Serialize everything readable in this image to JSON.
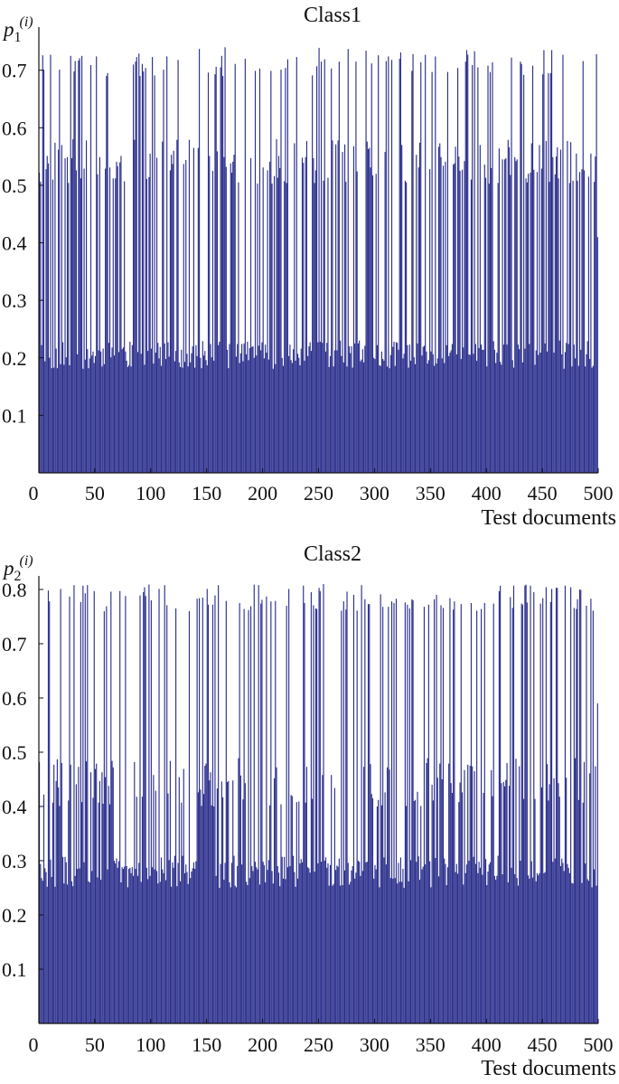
{
  "chart_data": [
    {
      "type": "bar",
      "title": "Class1",
      "ylabel": {
        "base": "p",
        "sub": "1",
        "sup": "(i)"
      },
      "xlabel": "Test documents",
      "xlim": [
        0,
        500
      ],
      "ylim": [
        0,
        0.775
      ],
      "xticks": [
        "0",
        "50",
        "100",
        "150",
        "200",
        "250",
        "300",
        "350",
        "400",
        "450",
        "500"
      ],
      "yticks": [
        "0.1",
        "0.2",
        "0.3",
        "0.4",
        "0.5",
        "0.6",
        "0.7"
      ],
      "color": "#2b2f8c",
      "generator": {
        "seed": 11,
        "n": 500,
        "floor_min": 0.18,
        "floor_max": 0.23,
        "mid_min": 0.5,
        "mid_max": 0.58,
        "top_min": 0.69,
        "top_max": 0.74,
        "p_top": 0.24,
        "p_mid": 0.28,
        "last_value": 0.41
      }
    },
    {
      "type": "bar",
      "title": "Class2",
      "ylabel": {
        "base": "p",
        "sub": "2",
        "sup": "(i)"
      },
      "xlabel": "Test documents",
      "xlim": [
        0,
        500
      ],
      "ylim": [
        0,
        0.825
      ],
      "xticks": [
        "0",
        "50",
        "100",
        "150",
        "200",
        "250",
        "300",
        "350",
        "400",
        "450",
        "500"
      ],
      "yticks": [
        "0.1",
        "0.2",
        "0.3",
        "0.4",
        "0.5",
        "0.6",
        "0.7",
        "0.8"
      ],
      "color": "#2b2f8c",
      "generator": {
        "seed": 29,
        "n": 500,
        "floor_min": 0.25,
        "floor_max": 0.31,
        "mid_min": 0.4,
        "mid_max": 0.49,
        "top_min": 0.76,
        "top_max": 0.81,
        "p_top": 0.24,
        "p_mid": 0.28,
        "last_value": 0.59
      }
    }
  ]
}
